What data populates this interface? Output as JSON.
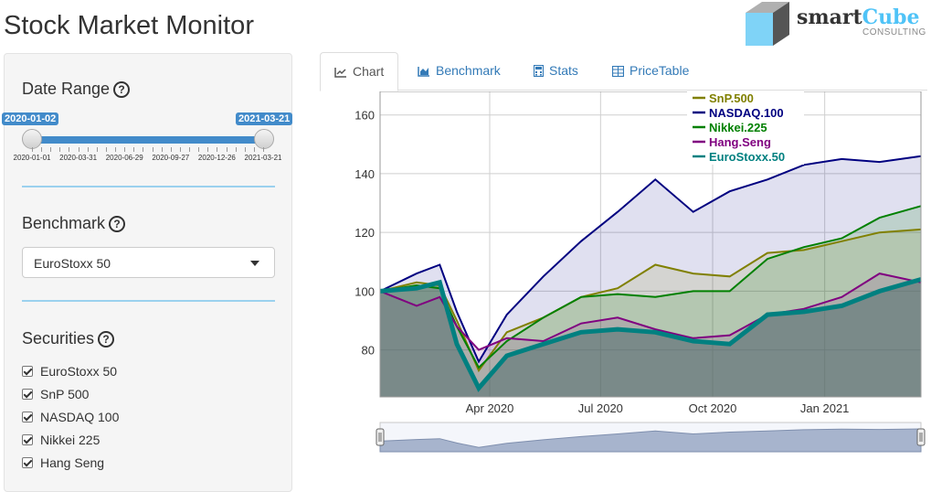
{
  "app": {
    "title": "Stock Market Monitor"
  },
  "logo": {
    "brand_smart": "smart",
    "brand_cube": "Cube",
    "sub": "CONSULTING"
  },
  "sidebar": {
    "date_range": {
      "label": "Date Range",
      "start_badge": "2020-01-02",
      "end_badge": "2021-03-21",
      "ticks": [
        "2020-01-01",
        "2020-03-31",
        "2020-06-29",
        "2020-09-27",
        "2020-12-26",
        "2021-03-21"
      ]
    },
    "benchmark": {
      "label": "Benchmark",
      "selected": "EuroStoxx 50"
    },
    "securities": {
      "label": "Securities",
      "items": [
        {
          "label": "EuroStoxx 50",
          "checked": true
        },
        {
          "label": "SnP 500",
          "checked": true
        },
        {
          "label": "NASDAQ 100",
          "checked": true
        },
        {
          "label": "Nikkei 225",
          "checked": true
        },
        {
          "label": "Hang Seng",
          "checked": true
        }
      ]
    }
  },
  "tabs": [
    {
      "label": "Chart",
      "icon": "line-chart-icon",
      "active": true
    },
    {
      "label": "Benchmark",
      "icon": "area-chart-icon",
      "active": false
    },
    {
      "label": "Stats",
      "icon": "calculator-icon",
      "active": false
    },
    {
      "label": "PriceTable",
      "icon": "table-icon",
      "active": false
    }
  ],
  "chart_data": {
    "type": "line",
    "x_ticks": [
      "Apr 2020",
      "Jul 2020",
      "Oct 2020",
      "Jan 2021"
    ],
    "y_ticks": [
      80,
      100,
      120,
      140,
      160
    ],
    "ylim": [
      64,
      168
    ],
    "grid": true,
    "legend_position": "top-center",
    "x": [
      "2020-01-02",
      "2020-02-01",
      "2020-02-20",
      "2020-03-05",
      "2020-03-23",
      "2020-04-15",
      "2020-05-15",
      "2020-06-15",
      "2020-07-15",
      "2020-08-15",
      "2020-09-15",
      "2020-10-15",
      "2020-11-15",
      "2020-12-15",
      "2021-01-15",
      "2021-02-15",
      "2021-03-21"
    ],
    "series": [
      {
        "name": "SnP.500",
        "color": "#808000",
        "values": [
          100,
          103,
          102,
          90,
          73,
          86,
          91,
          98,
          101,
          109,
          106,
          105,
          113,
          114,
          117,
          120,
          121
        ]
      },
      {
        "name": "NASDAQ.100",
        "color": "#000080",
        "values": [
          100,
          106,
          109,
          93,
          76,
          92,
          105,
          117,
          127,
          138,
          127,
          134,
          138,
          143,
          145,
          144,
          146
        ]
      },
      {
        "name": "Nikkei.225",
        "color": "#008000",
        "values": [
          100,
          102,
          101,
          88,
          74,
          83,
          91,
          98,
          99,
          98,
          100,
          100,
          111,
          115,
          118,
          125,
          129
        ]
      },
      {
        "name": "Hang.Seng",
        "color": "#800080",
        "values": [
          100,
          95,
          98,
          88,
          80,
          84,
          83,
          89,
          91,
          87,
          84,
          85,
          92,
          94,
          98,
          106,
          103
        ]
      },
      {
        "name": "EuroStoxx.50",
        "color": "#008080",
        "values": [
          100,
          101,
          103,
          82,
          67,
          78,
          82,
          86,
          87,
          86,
          83,
          82,
          92,
          93,
          95,
          100,
          104
        ]
      }
    ]
  }
}
